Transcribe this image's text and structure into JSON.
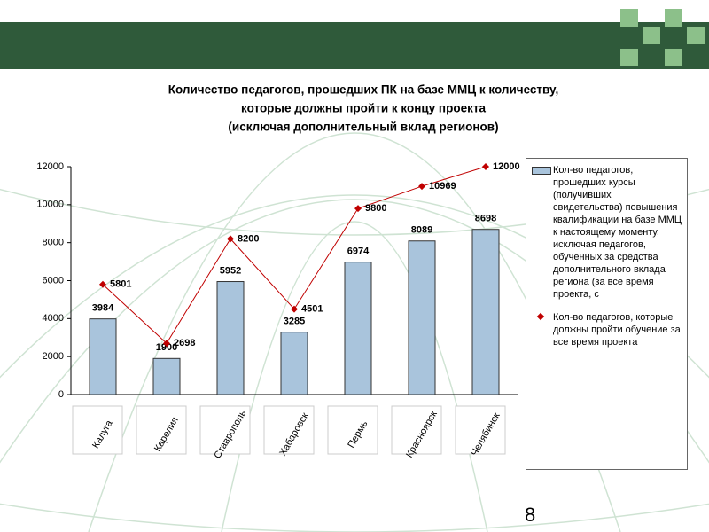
{
  "chart_data": {
    "type": "bar_line",
    "title": [
      "Количество педагогов, прошедших ПК на базе ММЦ к количеству,",
      "которые должны пройти к концу проекта",
      "(исключая дополнительный вклад регионов)"
    ],
    "categories": [
      "Калуга",
      "Карелия",
      "Ставрополь",
      "Хабаровск",
      "Пермь",
      "Красноярск",
      "Челябинск"
    ],
    "series": [
      {
        "name": "Кол-во педагогов, прошедших курсы (получивших свидетельства) повышения квалификации на базе ММЦ к настоящему моменту, исключая педагогов, обученных за средства дополнительного вклада региона (за все время проекта, с",
        "type": "bar",
        "color": "#a9c4dc",
        "values": [
          3984,
          1900,
          5952,
          3285,
          6974,
          8089,
          8698
        ]
      },
      {
        "name": "Кол-во педагогов, которые должны пройти обучение за все время проекта",
        "type": "line",
        "color": "#c00000",
        "values": [
          5801,
          2698,
          8200,
          4501,
          9800,
          10969,
          12000
        ]
      }
    ],
    "ylim": [
      0,
      12000
    ],
    "yticks": [
      0,
      2000,
      4000,
      6000,
      8000,
      10000,
      12000
    ],
    "legend": "right"
  },
  "slide": {
    "page_number": "8"
  }
}
